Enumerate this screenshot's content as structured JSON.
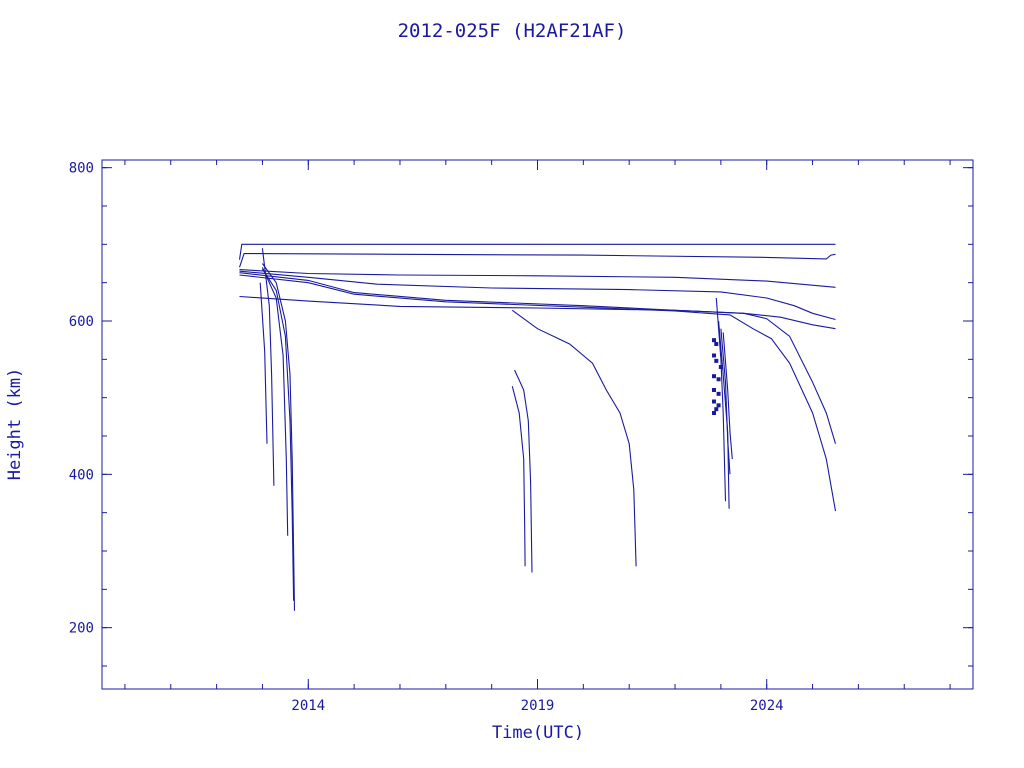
{
  "chart_data": {
    "type": "line",
    "title": "2012-025F (H2AF21AF)",
    "xlabel": "Time(UTC)",
    "ylabel": "Height (km)",
    "xlim": [
      2009.5,
      2028.5
    ],
    "ylim": [
      120,
      810
    ],
    "x_ticks": [
      {
        "value": 2014,
        "label": "2014"
      },
      {
        "value": 2019,
        "label": "2019"
      },
      {
        "value": 2024,
        "label": "2024"
      }
    ],
    "y_ticks": [
      {
        "value": 200,
        "label": "200"
      },
      {
        "value": 400,
        "label": "400"
      },
      {
        "value": 600,
        "label": "600"
      },
      {
        "value": 800,
        "label": "800"
      }
    ],
    "x_minor_step": 1,
    "y_minor_step": 50,
    "grid": false,
    "series": [
      {
        "values": [
          [
            2012.5,
            680
          ],
          [
            2012.55,
            700
          ],
          [
            2016,
            700
          ],
          [
            2020,
            700
          ],
          [
            2025.5,
            700
          ]
        ]
      },
      {
        "values": [
          [
            2012.5,
            670
          ],
          [
            2012.6,
            688
          ],
          [
            2016,
            687
          ],
          [
            2020,
            686
          ],
          [
            2024,
            683
          ],
          [
            2025.3,
            681
          ],
          [
            2025.4,
            686
          ],
          [
            2025.5,
            687
          ]
        ]
      },
      {
        "values": [
          [
            2012.5,
            667
          ],
          [
            2014,
            662
          ],
          [
            2016,
            660
          ],
          [
            2019,
            659
          ],
          [
            2022,
            657
          ],
          [
            2024,
            652
          ],
          [
            2025.5,
            644
          ]
        ]
      },
      {
        "values": [
          [
            2012.5,
            665
          ],
          [
            2014,
            657
          ],
          [
            2015.5,
            648
          ],
          [
            2018,
            643
          ],
          [
            2021,
            641
          ],
          [
            2023,
            638
          ],
          [
            2024,
            630
          ],
          [
            2024.6,
            620
          ],
          [
            2025,
            610
          ],
          [
            2025.5,
            602
          ]
        ]
      },
      {
        "values": [
          [
            2012.5,
            663
          ],
          [
            2014,
            653
          ],
          [
            2015,
            637
          ],
          [
            2017,
            627
          ],
          [
            2020,
            620
          ],
          [
            2022,
            614
          ],
          [
            2023.5,
            610
          ],
          [
            2024.3,
            605
          ],
          [
            2025,
            595
          ],
          [
            2025.5,
            590
          ]
        ]
      },
      {
        "values": [
          [
            2012.5,
            660
          ],
          [
            2014,
            650
          ],
          [
            2015,
            635
          ],
          [
            2017,
            625
          ],
          [
            2020,
            618
          ],
          [
            2022,
            613
          ],
          [
            2023.2,
            608
          ],
          [
            2023.7,
            590
          ],
          [
            2024.1,
            577
          ],
          [
            2024.5,
            545
          ],
          [
            2025,
            480
          ],
          [
            2025.3,
            420
          ],
          [
            2025.5,
            352
          ]
        ]
      },
      {
        "values": [
          [
            2012.5,
            632
          ],
          [
            2014,
            626
          ],
          [
            2016,
            619
          ],
          [
            2019,
            617
          ],
          [
            2022,
            614
          ],
          [
            2023.5,
            610
          ],
          [
            2024,
            603
          ],
          [
            2024.5,
            580
          ],
          [
            2025,
            520
          ],
          [
            2025.3,
            480
          ],
          [
            2025.5,
            440
          ]
        ]
      },
      {
        "values": [
          [
            2013,
            675
          ],
          [
            2013.3,
            650
          ],
          [
            2013.5,
            600
          ],
          [
            2013.6,
            530
          ],
          [
            2013.65,
            420
          ],
          [
            2013.68,
            300
          ],
          [
            2013.7,
            222
          ]
        ]
      },
      {
        "values": [
          [
            2013,
            668
          ],
          [
            2013.3,
            640
          ],
          [
            2013.5,
            580
          ],
          [
            2013.6,
            470
          ],
          [
            2013.65,
            350
          ],
          [
            2013.68,
            235
          ]
        ]
      },
      {
        "values": [
          [
            2013,
            670
          ],
          [
            2013.3,
            630
          ],
          [
            2013.45,
            555
          ],
          [
            2013.52,
            420
          ],
          [
            2013.55,
            320
          ]
        ]
      },
      {
        "values": [
          [
            2013,
            695
          ],
          [
            2013.15,
            620
          ],
          [
            2013.2,
            530
          ],
          [
            2013.25,
            385
          ]
        ]
      },
      {
        "values": [
          [
            2012.95,
            650
          ],
          [
            2013.05,
            560
          ],
          [
            2013.1,
            440
          ]
        ]
      },
      {
        "values": [
          [
            2018.5,
            536
          ],
          [
            2018.7,
            510
          ],
          [
            2018.8,
            470
          ],
          [
            2018.85,
            390
          ],
          [
            2018.88,
            272
          ]
        ]
      },
      {
        "values": [
          [
            2018.45,
            515
          ],
          [
            2018.6,
            480
          ],
          [
            2018.7,
            420
          ],
          [
            2018.72,
            330
          ],
          [
            2018.73,
            280
          ]
        ]
      },
      {
        "values": [
          [
            2018.45,
            614
          ],
          [
            2019,
            590
          ],
          [
            2019.7,
            570
          ],
          [
            2020.2,
            545
          ],
          [
            2020.5,
            510
          ],
          [
            2020.8,
            480
          ],
          [
            2021.0,
            440
          ],
          [
            2021.1,
            380
          ],
          [
            2021.15,
            280
          ]
        ]
      },
      {
        "values": [
          [
            2022.9,
            630
          ],
          [
            2023.0,
            550
          ],
          [
            2023.05,
            480
          ],
          [
            2023.1,
            365
          ]
        ]
      },
      {
        "values": [
          [
            2022.95,
            600
          ],
          [
            2023.05,
            530
          ],
          [
            2023.15,
            455
          ],
          [
            2023.18,
            355
          ]
        ]
      },
      {
        "values": [
          [
            2023.0,
            590
          ],
          [
            2023.1,
            520
          ],
          [
            2023.15,
            445
          ],
          [
            2023.2,
            400
          ]
        ]
      },
      {
        "values": [
          [
            2023.05,
            585
          ],
          [
            2023.15,
            510
          ],
          [
            2023.2,
            455
          ],
          [
            2023.25,
            420
          ]
        ]
      }
    ],
    "scatter": [
      [
        2022.85,
        575
      ],
      [
        2022.9,
        570
      ],
      [
        2022.85,
        555
      ],
      [
        2022.9,
        548
      ],
      [
        2022.85,
        528
      ],
      [
        2022.95,
        524
      ],
      [
        2022.85,
        510
      ],
      [
        2022.95,
        505
      ],
      [
        2022.85,
        495
      ],
      [
        2022.95,
        490
      ],
      [
        2022.85,
        480
      ],
      [
        2022.9,
        485
      ],
      [
        2023.0,
        540
      ]
    ]
  }
}
